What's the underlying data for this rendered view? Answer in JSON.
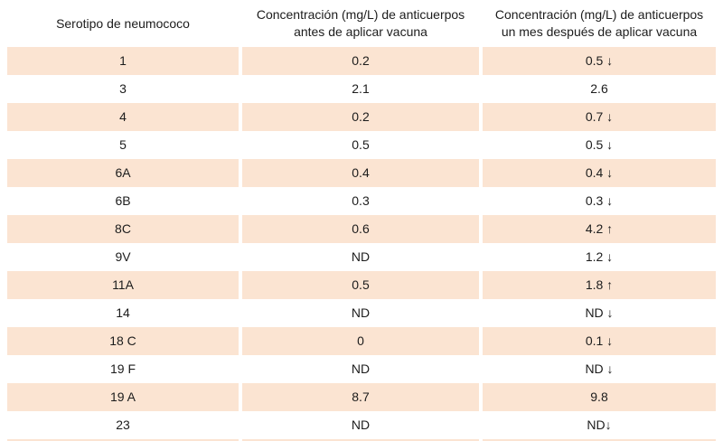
{
  "chart_data": {
    "type": "table",
    "title": "",
    "columns": [
      "Serotipo de neumococo",
      "Concentración (mg/L) de anticuerpos antes de aplicar vacuna",
      "Concentración (mg/L) de anticuerpos un mes después de aplicar vacuna"
    ],
    "rows": [
      [
        "1",
        "0.2",
        "0.5 ↓"
      ],
      [
        "3",
        "2.1",
        "2.6"
      ],
      [
        "4",
        "0.2",
        "0.7 ↓"
      ],
      [
        "5",
        "0.5",
        "0.5 ↓"
      ],
      [
        "6A",
        "0.4",
        "0.4 ↓"
      ],
      [
        "6B",
        "0.3",
        "0.3 ↓"
      ],
      [
        "8C",
        "0.6",
        "4.2 ↑"
      ],
      [
        "9V",
        "ND",
        "1.2 ↓"
      ],
      [
        "11A",
        "0.5",
        "1.8 ↑"
      ],
      [
        "14",
        "ND",
        "ND ↓"
      ],
      [
        "18 C",
        "0",
        "0.1 ↓"
      ],
      [
        "19 F",
        "ND",
        "ND ↓"
      ],
      [
        "19 A",
        "8.7",
        "9.8"
      ],
      [
        "23",
        "ND",
        "ND↓"
      ]
    ],
    "layout_hints": {
      "striped": true,
      "stripe_rows": "odd (1st, 3rd, ...)",
      "partial_next_row_visible_at_bottom": true
    }
  },
  "header_display": [
    {
      "line1": "Serotipo de neumococo",
      "line2": ""
    },
    {
      "line1": "Concentración (mg/L) de anticuerpos",
      "line2": "antes de aplicar vacuna"
    },
    {
      "line1": "Concentración (mg/L) de anticuerpos",
      "line2": "un mes después de aplicar vacuna"
    }
  ],
  "icons": {
    "arrow-down-icon": "↓",
    "arrow-up-icon": "↑"
  },
  "colors": {
    "row_alt": "#fbe4d2",
    "background": "#ffffff",
    "text": "#1c1c1c"
  }
}
